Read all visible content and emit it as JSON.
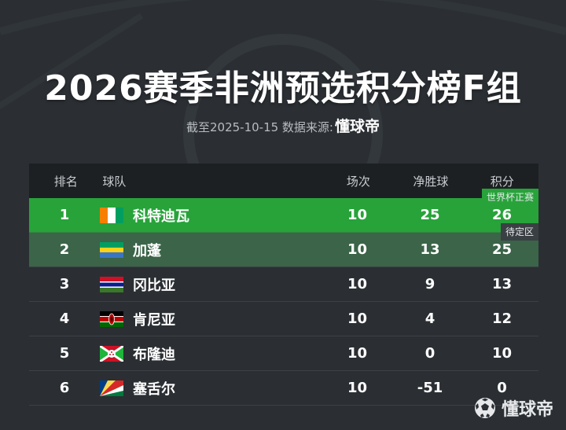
{
  "title": "2026赛季非洲预选积分榜F组",
  "subtitle": {
    "prefix": "截至2025-10-15 数据来源:",
    "brand": "懂球帝"
  },
  "table": {
    "headers": {
      "rank": "排名",
      "team": "球队",
      "played": "场次",
      "goal_diff": "净胜球",
      "points": "积分"
    },
    "zones": {
      "world_cup": "世界杯正赛",
      "pending": "待定区"
    },
    "rows": [
      {
        "rank": "1",
        "team": "科特迪瓦",
        "flag": "ivory-coast",
        "played": "10",
        "goal_diff": "25",
        "points": "26"
      },
      {
        "rank": "2",
        "team": "加蓬",
        "flag": "gabon",
        "played": "10",
        "goal_diff": "13",
        "points": "25"
      },
      {
        "rank": "3",
        "team": "冈比亚",
        "flag": "gambia",
        "played": "10",
        "goal_diff": "9",
        "points": "13"
      },
      {
        "rank": "4",
        "team": "肯尼亚",
        "flag": "kenya",
        "played": "10",
        "goal_diff": "4",
        "points": "12"
      },
      {
        "rank": "5",
        "team": "布隆迪",
        "flag": "burundi",
        "played": "10",
        "goal_diff": "0",
        "points": "10"
      },
      {
        "rank": "6",
        "team": "塞舌尔",
        "flag": "seychelles",
        "played": "10",
        "goal_diff": "-51",
        "points": "0"
      }
    ]
  },
  "footer": {
    "brand": "懂球帝",
    "icon": "soccer-ball-icon"
  },
  "colors": {
    "background": "#2b2f33",
    "qualified": "#27a33a",
    "pending": "#3b6448",
    "header": "#1d2023"
  }
}
